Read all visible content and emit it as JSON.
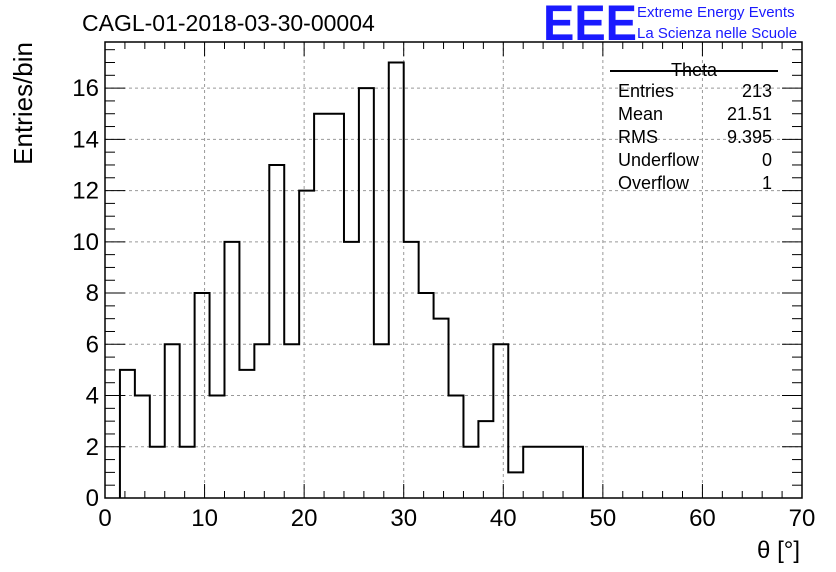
{
  "header": {
    "title": "CAGL-01-2018-03-30-00004",
    "logo_letters": "EEE",
    "logo_line1": "Extreme Energy Events",
    "logo_line2": "La Scienza nelle Scuole",
    "brand_color": "#1a1aff"
  },
  "stats_box": {
    "title": "Theta",
    "rows": [
      {
        "label": "Entries",
        "value": "213"
      },
      {
        "label": "Mean",
        "value": "21.51"
      },
      {
        "label": "RMS",
        "value": "9.395"
      },
      {
        "label": "Underflow",
        "value": "0"
      },
      {
        "label": "Overflow",
        "value": "1"
      }
    ]
  },
  "chart_data": {
    "type": "bar",
    "style": "histogram-step",
    "title": "CAGL-01-2018-03-30-00004",
    "xlabel": "θ [°]",
    "ylabel": "Entries/bin",
    "xlim": [
      0,
      70
    ],
    "ylim": [
      0,
      17.8
    ],
    "grid": true,
    "x_ticks": [
      0,
      10,
      20,
      30,
      40,
      50,
      60,
      70
    ],
    "y_ticks": [
      0,
      2,
      4,
      6,
      8,
      10,
      12,
      14,
      16
    ],
    "bin_width": 1.5,
    "bin_start": 1.5,
    "values": [
      5,
      4,
      2,
      6,
      2,
      8,
      4,
      10,
      5,
      6,
      13,
      6,
      12,
      15,
      15,
      10,
      16,
      6,
      17,
      10,
      8,
      7,
      4,
      2,
      3,
      6,
      1,
      2,
      2,
      2,
      2
    ]
  }
}
